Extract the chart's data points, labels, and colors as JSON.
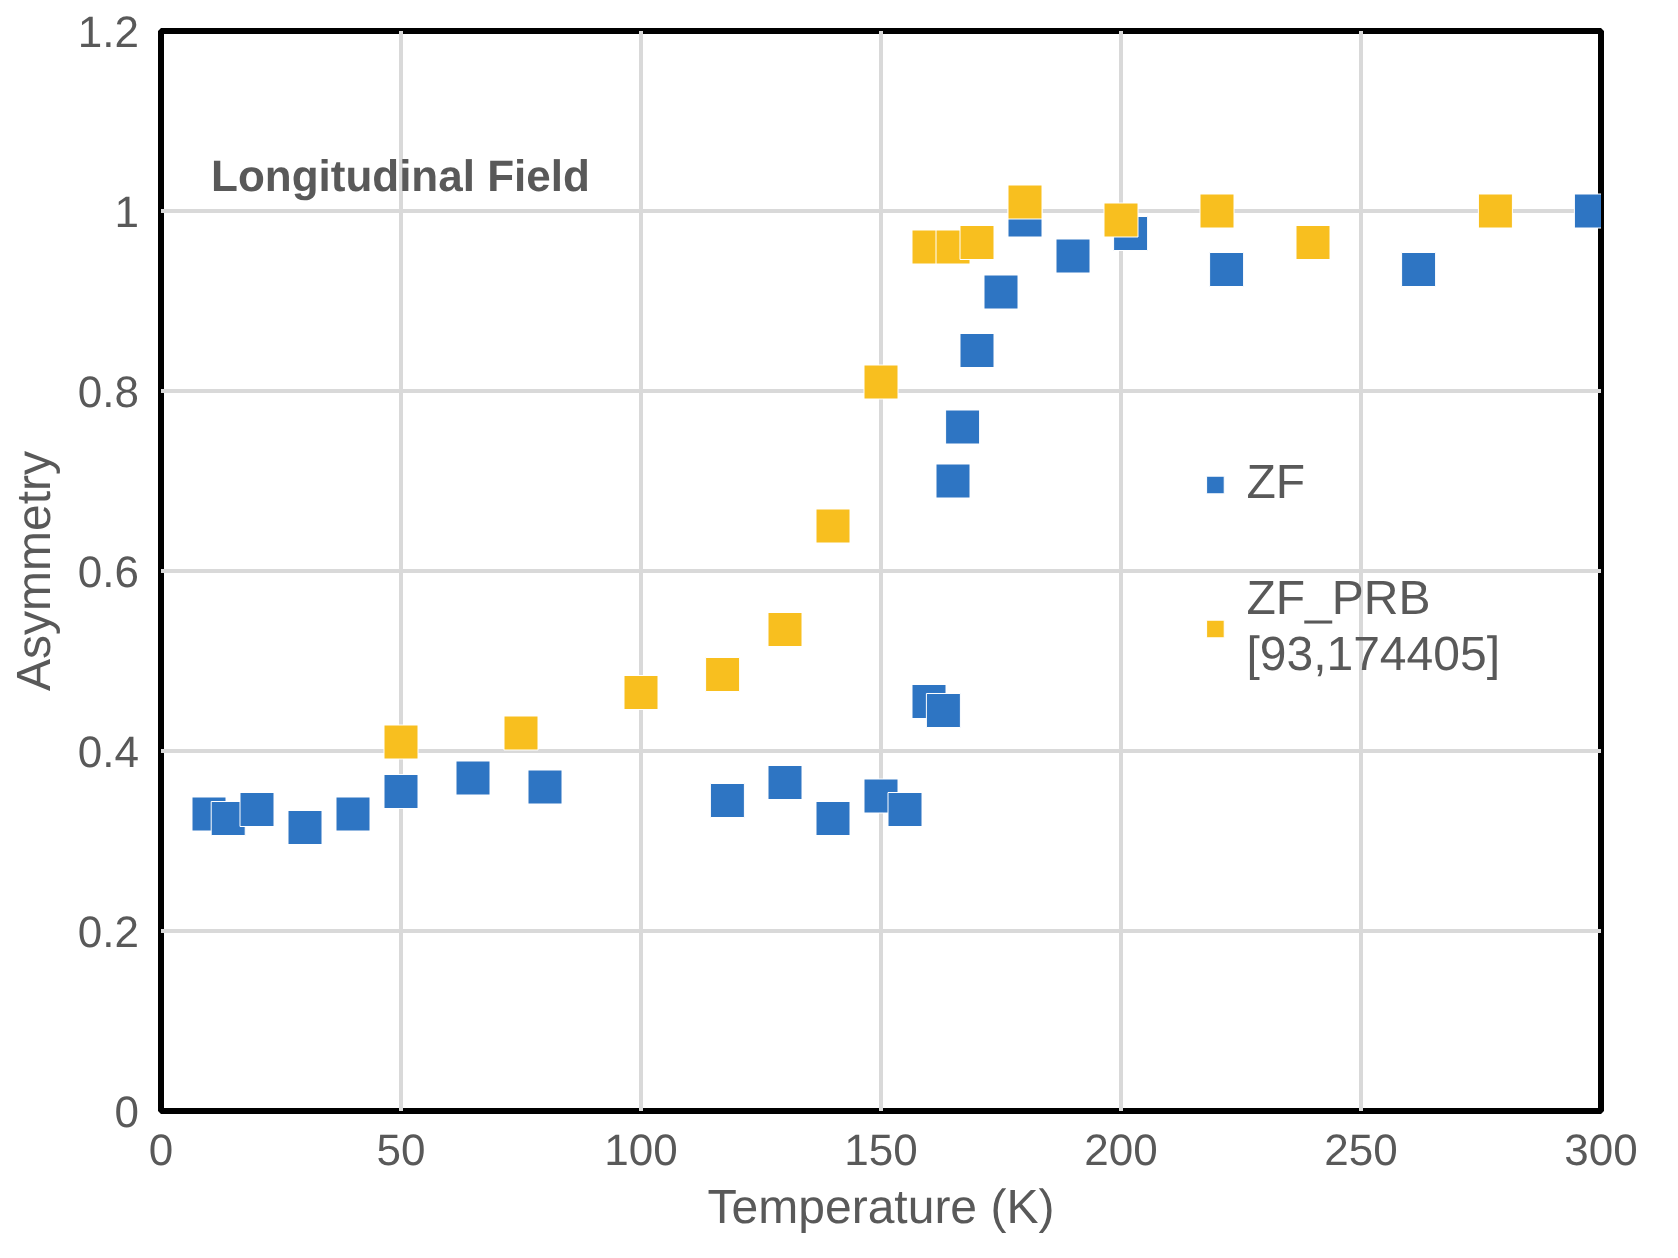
{
  "chart_data": {
    "type": "scatter",
    "title": "Longitudinal Field",
    "xlabel": "Temperature (K)",
    "ylabel": "Asymmetry",
    "xlim": [
      0,
      300
    ],
    "ylim": [
      0,
      1.2
    ],
    "xticks": [
      0,
      50,
      100,
      150,
      200,
      250,
      300
    ],
    "yticks": [
      0,
      {
        "value": 0.2,
        "label": "0.2"
      },
      {
        "value": 0.4,
        "label": "0.4"
      },
      {
        "value": 0.6,
        "label": "0.6"
      },
      {
        "value": 0.8,
        "label": "0.8"
      },
      1,
      {
        "value": 1.2,
        "label": "1.2"
      }
    ],
    "grid": true,
    "legend": "right",
    "marker": "square",
    "series": [
      {
        "name": "ZF",
        "color": "#2e75c3",
        "x": [
          10,
          14,
          20,
          30,
          40,
          50,
          65,
          80,
          118,
          130,
          140,
          150,
          155,
          160,
          163,
          165,
          167,
          170,
          175,
          180,
          190,
          202,
          222,
          262,
          298
        ],
        "values": [
          0.33,
          0.325,
          0.335,
          0.315,
          0.33,
          0.355,
          0.37,
          0.36,
          0.345,
          0.365,
          0.325,
          0.35,
          0.335,
          0.455,
          0.445,
          0.7,
          0.76,
          0.845,
          0.91,
          0.99,
          0.95,
          0.975,
          0.935,
          0.935,
          1.0
        ]
      },
      {
        "name": "ZF_PRB\n[93,174405]",
        "color": "#f8bf1f",
        "x": [
          50,
          75,
          100,
          117,
          130,
          140,
          150,
          160,
          165,
          170,
          180,
          200,
          220,
          240,
          278
        ],
        "values": [
          0.41,
          0.42,
          0.465,
          0.485,
          0.535,
          0.65,
          0.81,
          0.96,
          0.96,
          0.965,
          1.01,
          0.99,
          1.0,
          0.965,
          1.0
        ]
      }
    ]
  }
}
